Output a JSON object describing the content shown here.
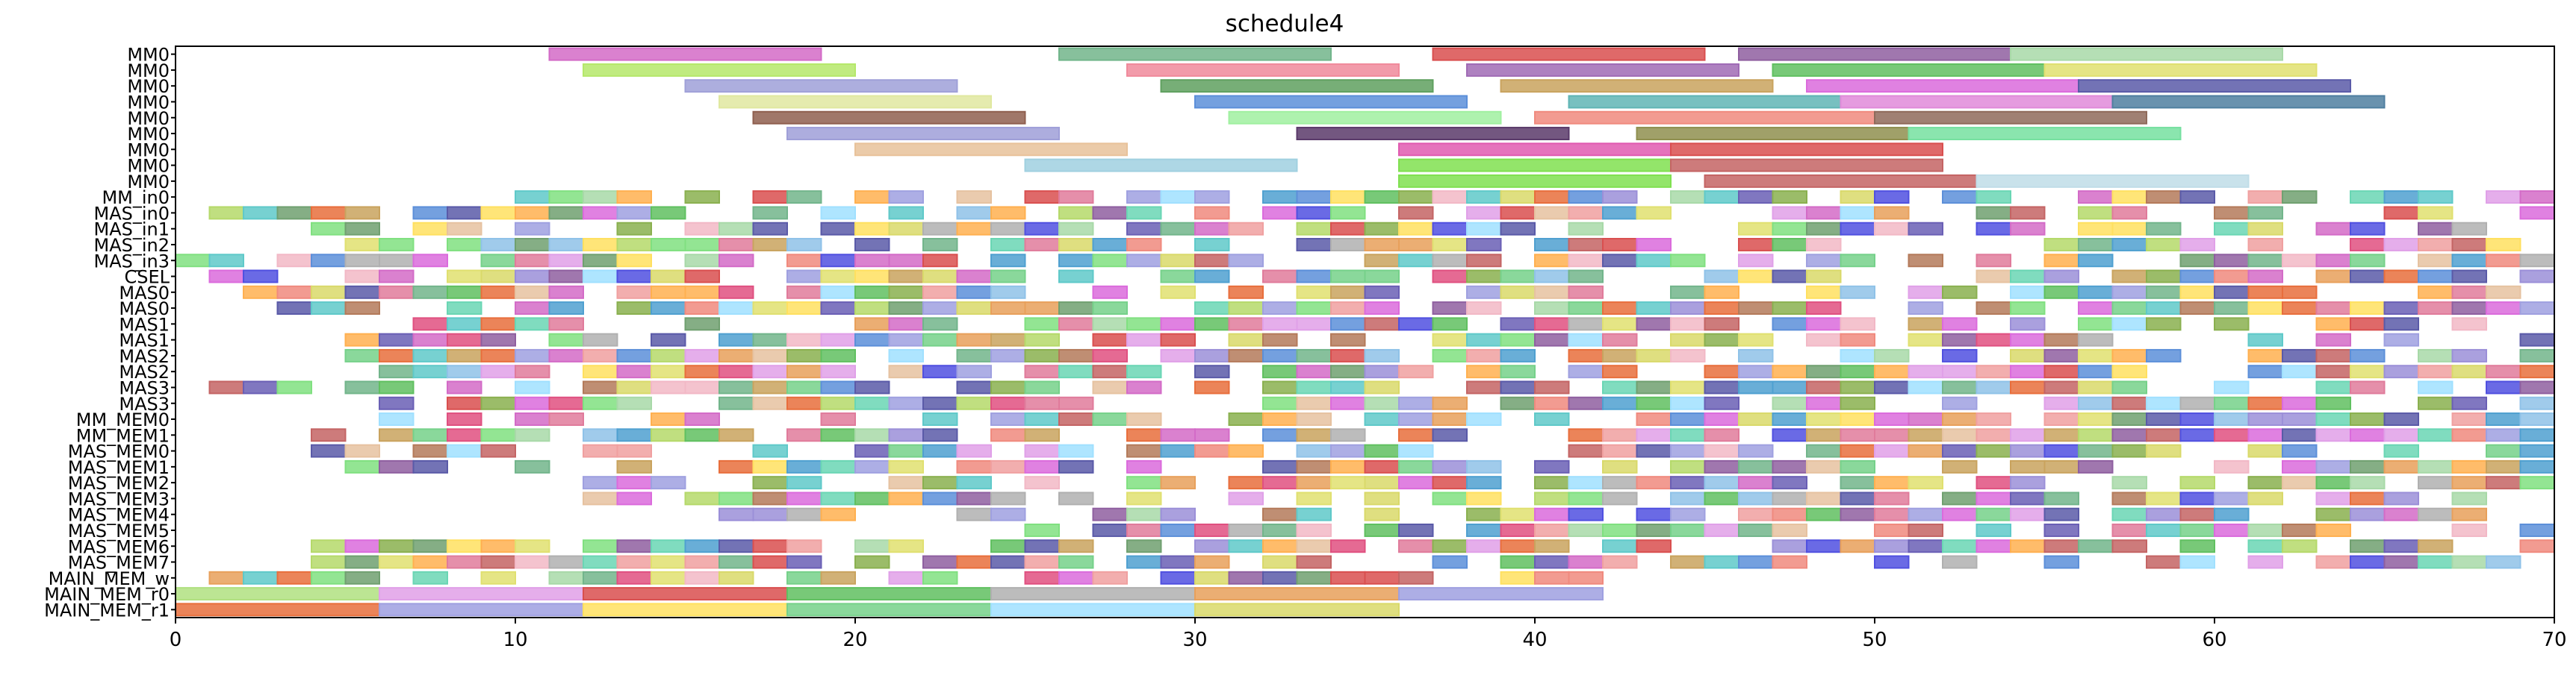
{
  "chart_data": {
    "type": "gantt",
    "title": "schedule4",
    "xlabel": "",
    "ylabel": "",
    "xlim": [
      0,
      70
    ],
    "x_ticks": [
      "0",
      "10",
      "20",
      "30",
      "40",
      "50",
      "60",
      "70"
    ],
    "grid": false,
    "legend": "none",
    "rows": [
      "MM0",
      "MM0",
      "MM0",
      "MM0",
      "MM0",
      "MM0",
      "MM0",
      "MM0",
      "MM0",
      "MM_in0",
      "MAS_in0",
      "MAS_in1",
      "MAS_in2",
      "MAS_in3",
      "CSEL",
      "MAS0",
      "MAS0",
      "MAS1",
      "MAS1",
      "MAS2",
      "MAS2",
      "MAS3",
      "MAS3",
      "MM_MEM0",
      "MM_MEM1",
      "MAS_MEM0",
      "MAS_MEM1",
      "MAS_MEM2",
      "MAS_MEM3",
      "MAS_MEM4",
      "MAS_MEM5",
      "MAS_MEM6",
      "MAS_MEM7",
      "MAIN_MEM_w",
      "MAIN_MEM_r0",
      "MAIN_MEM_r1"
    ],
    "palette": [
      "#d36bc7",
      "#72b58b",
      "#d94f4f",
      "#6a5fb5",
      "#b5d96a",
      "#e07b9b",
      "#4fa0d0",
      "#e8a05b",
      "#8ab04f",
      "#9b8fd8",
      "#c9a35e",
      "#5fc9c9",
      "#e0e070",
      "#8f5fa0",
      "#f08a7e",
      "#5c8fd9",
      "#76d18a",
      "#b47a5a",
      "#db6bdc",
      "#e6c2a0",
      "#5a5aa8",
      "#a8d9a8",
      "#f2b8c6",
      "#70a070",
      "#d9d96a",
      "#8fc2e8",
      "#c46464",
      "#6ad6b4",
      "#e86e3c",
      "#9fa0e0",
      "#e0a0e8",
      "#ffe060",
      "#a0e0ff",
      "#f0a0a0",
      "#60c060",
      "#b0b0b0",
      "#ffb050",
      "#5050e0",
      "#e05080",
      "#80e080"
    ],
    "tasks": [
      {
        "row": 0,
        "start": 11,
        "end": 19,
        "color": "#d36bc7"
      },
      {
        "row": 0,
        "start": 26,
        "end": 34,
        "color": "#72b58b"
      },
      {
        "row": 0,
        "start": 37,
        "end": 45,
        "color": "#d94f4f"
      },
      {
        "row": 0,
        "start": 46,
        "end": 54,
        "color": "#8f5fa0"
      },
      {
        "row": 0,
        "start": 54,
        "end": 62,
        "color": "#a8d9a8"
      },
      {
        "row": 1,
        "start": 12,
        "end": 20,
        "color": "#b5e86a"
      },
      {
        "row": 1,
        "start": 28,
        "end": 36,
        "color": "#f08a9b"
      },
      {
        "row": 1,
        "start": 38,
        "end": 46,
        "color": "#a06bb5"
      },
      {
        "row": 1,
        "start": 47,
        "end": 55,
        "color": "#60c060"
      },
      {
        "row": 1,
        "start": 55,
        "end": 63,
        "color": "#e0e070"
      },
      {
        "row": 2,
        "start": 15,
        "end": 23,
        "color": "#9fa0d8"
      },
      {
        "row": 2,
        "start": 29,
        "end": 37,
        "color": "#5fa05f"
      },
      {
        "row": 2,
        "start": 39,
        "end": 47,
        "color": "#c9a35e"
      },
      {
        "row": 2,
        "start": 48,
        "end": 56,
        "color": "#db6bdc"
      },
      {
        "row": 2,
        "start": 56,
        "end": 64,
        "color": "#5a5aa8"
      },
      {
        "row": 3,
        "start": 16,
        "end": 24,
        "color": "#e0e8a0"
      },
      {
        "row": 3,
        "start": 30,
        "end": 38,
        "color": "#5c8fd9"
      },
      {
        "row": 3,
        "start": 41,
        "end": 49,
        "color": "#5fb5b5"
      },
      {
        "row": 3,
        "start": 49,
        "end": 57,
        "color": "#e08ad9"
      },
      {
        "row": 3,
        "start": 57,
        "end": 65,
        "color": "#4f7fa0"
      },
      {
        "row": 4,
        "start": 17,
        "end": 25,
        "color": "#8f5f4f"
      },
      {
        "row": 4,
        "start": 31,
        "end": 39,
        "color": "#a0f0a0"
      },
      {
        "row": 4,
        "start": 40,
        "end": 50,
        "color": "#f08a7e"
      },
      {
        "row": 4,
        "start": 50,
        "end": 58,
        "color": "#8f6a5a"
      },
      {
        "row": 5,
        "start": 18,
        "end": 26,
        "color": "#9f9fd8"
      },
      {
        "row": 5,
        "start": 33,
        "end": 41,
        "color": "#5a3a6a"
      },
      {
        "row": 5,
        "start": 43,
        "end": 51,
        "color": "#8f8f4f"
      },
      {
        "row": 5,
        "start": 51,
        "end": 59,
        "color": "#76e0a0"
      },
      {
        "row": 6,
        "start": 20,
        "end": 28,
        "color": "#e8c29a"
      },
      {
        "row": 6,
        "start": 36,
        "end": 44,
        "color": "#e05ab0"
      },
      {
        "row": 6,
        "start": 44,
        "end": 52,
        "color": "#d94f4f"
      },
      {
        "row": 7,
        "start": 25,
        "end": 33,
        "color": "#a0d0e0"
      },
      {
        "row": 7,
        "start": 36,
        "end": 44,
        "color": "#80e050"
      },
      {
        "row": 7,
        "start": 44,
        "end": 52,
        "color": "#c46464"
      },
      {
        "row": 8,
        "start": 36,
        "end": 44,
        "color": "#80e050"
      },
      {
        "row": 8,
        "start": 45,
        "end": 53,
        "color": "#c46464"
      },
      {
        "row": 8,
        "start": 53,
        "end": 61,
        "color": "#c0dde8"
      },
      {
        "row": 35,
        "start": 0,
        "end": 6,
        "color": "#e86e3c"
      },
      {
        "row": 35,
        "start": 6,
        "end": 12,
        "color": "#9f9fe0"
      },
      {
        "row": 35,
        "start": 12,
        "end": 18,
        "color": "#ffe060"
      },
      {
        "row": 35,
        "start": 18,
        "end": 24,
        "color": "#76d18a"
      },
      {
        "row": 35,
        "start": 24,
        "end": 30,
        "color": "#a0e0ff"
      },
      {
        "row": 35,
        "start": 30,
        "end": 36,
        "color": "#d9d96a"
      },
      {
        "row": 34,
        "start": 0,
        "end": 6,
        "color": "#b0e080"
      },
      {
        "row": 34,
        "start": 6,
        "end": 12,
        "color": "#e0a0e8"
      },
      {
        "row": 34,
        "start": 12,
        "end": 18,
        "color": "#d94f4f"
      },
      {
        "row": 34,
        "start": 18,
        "end": 24,
        "color": "#60c060"
      },
      {
        "row": 34,
        "start": 24,
        "end": 30,
        "color": "#b0b0b0"
      },
      {
        "row": 34,
        "start": 30,
        "end": 36,
        "color": "#e8a05b"
      },
      {
        "row": 34,
        "start": 36,
        "end": 42,
        "color": "#9fa0e0"
      }
    ],
    "cell_blocks": [
      {
        "row": 9,
        "start": 10,
        "end": 70
      },
      {
        "row": 10,
        "start": 1,
        "end": 70
      },
      {
        "row": 11,
        "start": 4,
        "end": 70
      },
      {
        "row": 12,
        "start": 4,
        "end": 70
      },
      {
        "row": 13,
        "start": 0,
        "end": 70
      },
      {
        "row": 14,
        "start": 1,
        "end": 70
      },
      {
        "row": 15,
        "start": 2,
        "end": 70
      },
      {
        "row": 16,
        "start": 3,
        "end": 70
      },
      {
        "row": 17,
        "start": 5,
        "end": 70
      },
      {
        "row": 18,
        "start": 5,
        "end": 70
      },
      {
        "row": 19,
        "start": 5,
        "end": 70
      },
      {
        "row": 20,
        "start": 6,
        "end": 70
      },
      {
        "row": 21,
        "start": 1,
        "end": 70
      },
      {
        "row": 22,
        "start": 6,
        "end": 70
      },
      {
        "row": 23,
        "start": 6,
        "end": 70
      },
      {
        "row": 24,
        "start": 4,
        "end": 70
      },
      {
        "row": 25,
        "start": 4,
        "end": 70
      },
      {
        "row": 26,
        "start": 4,
        "end": 70
      },
      {
        "row": 27,
        "start": 12,
        "end": 70
      },
      {
        "row": 28,
        "start": 12,
        "end": 70
      },
      {
        "row": 29,
        "start": 16,
        "end": 70
      },
      {
        "row": 30,
        "start": 25,
        "end": 70
      },
      {
        "row": 31,
        "start": 4,
        "end": 70
      },
      {
        "row": 32,
        "start": 4,
        "end": 70
      },
      {
        "row": 33,
        "start": 0,
        "end": 42
      }
    ]
  }
}
